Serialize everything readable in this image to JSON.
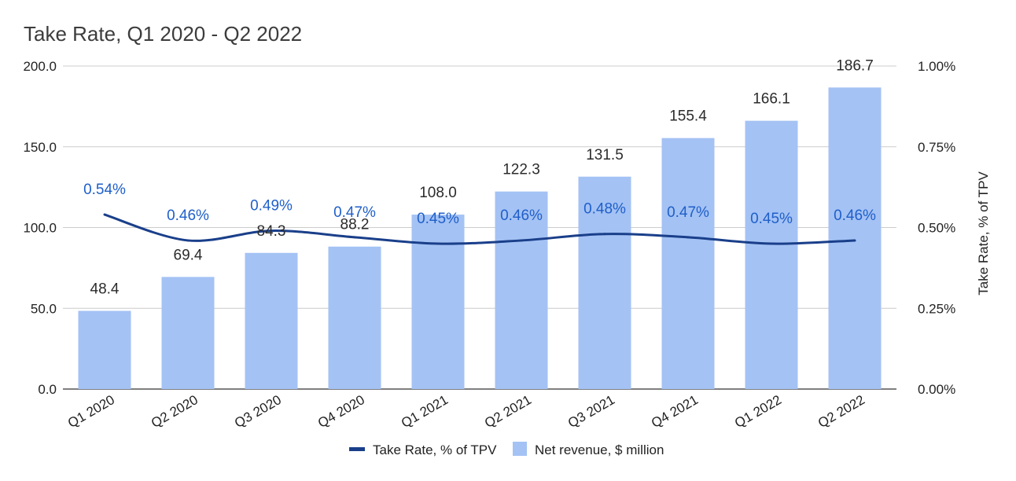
{
  "chart_data": {
    "type": "bar",
    "title": "Take Rate, Q1 2020 - Q2 2022",
    "xlabel": "",
    "ylabel": "",
    "y2label": "Take Rate, % of TPV",
    "categories": [
      "Q1 2020",
      "Q2 2020",
      "Q3 2020",
      "Q4 2020",
      "Q1 2021",
      "Q2 2021",
      "Q3 2021",
      "Q4 2021",
      "Q1 2022",
      "Q2 2022"
    ],
    "series": [
      {
        "name": "Net revenue, $ million",
        "type": "bar",
        "axis": "left",
        "color": "#a4c2f4",
        "values": [
          48.4,
          69.4,
          84.3,
          88.2,
          108.0,
          122.3,
          131.5,
          155.4,
          166.1,
          186.7
        ],
        "labels": [
          "48.4",
          "69.4",
          "84.3",
          "88.2",
          "108.0",
          "122.3",
          "131.5",
          "155.4",
          "166.1",
          "186.7"
        ]
      },
      {
        "name": "Take Rate, % of TPV",
        "type": "line",
        "axis": "right",
        "color": "#1a3f8a",
        "values": [
          0.54,
          0.46,
          0.49,
          0.47,
          0.45,
          0.46,
          0.48,
          0.47,
          0.45,
          0.46
        ],
        "labels": [
          "0.54%",
          "0.46%",
          "0.49%",
          "0.47%",
          "0.45%",
          "0.46%",
          "0.48%",
          "0.47%",
          "0.45%",
          "0.46%"
        ]
      }
    ],
    "ylim": [
      0,
      200
    ],
    "y2lim": [
      0,
      1
    ],
    "yticks": [
      "0.0",
      "50.0",
      "100.0",
      "150.0",
      "200.0"
    ],
    "y2ticks": [
      "0.00%",
      "0.25%",
      "0.50%",
      "0.75%",
      "1.00%"
    ],
    "grid": true,
    "legend_position": "bottom"
  }
}
